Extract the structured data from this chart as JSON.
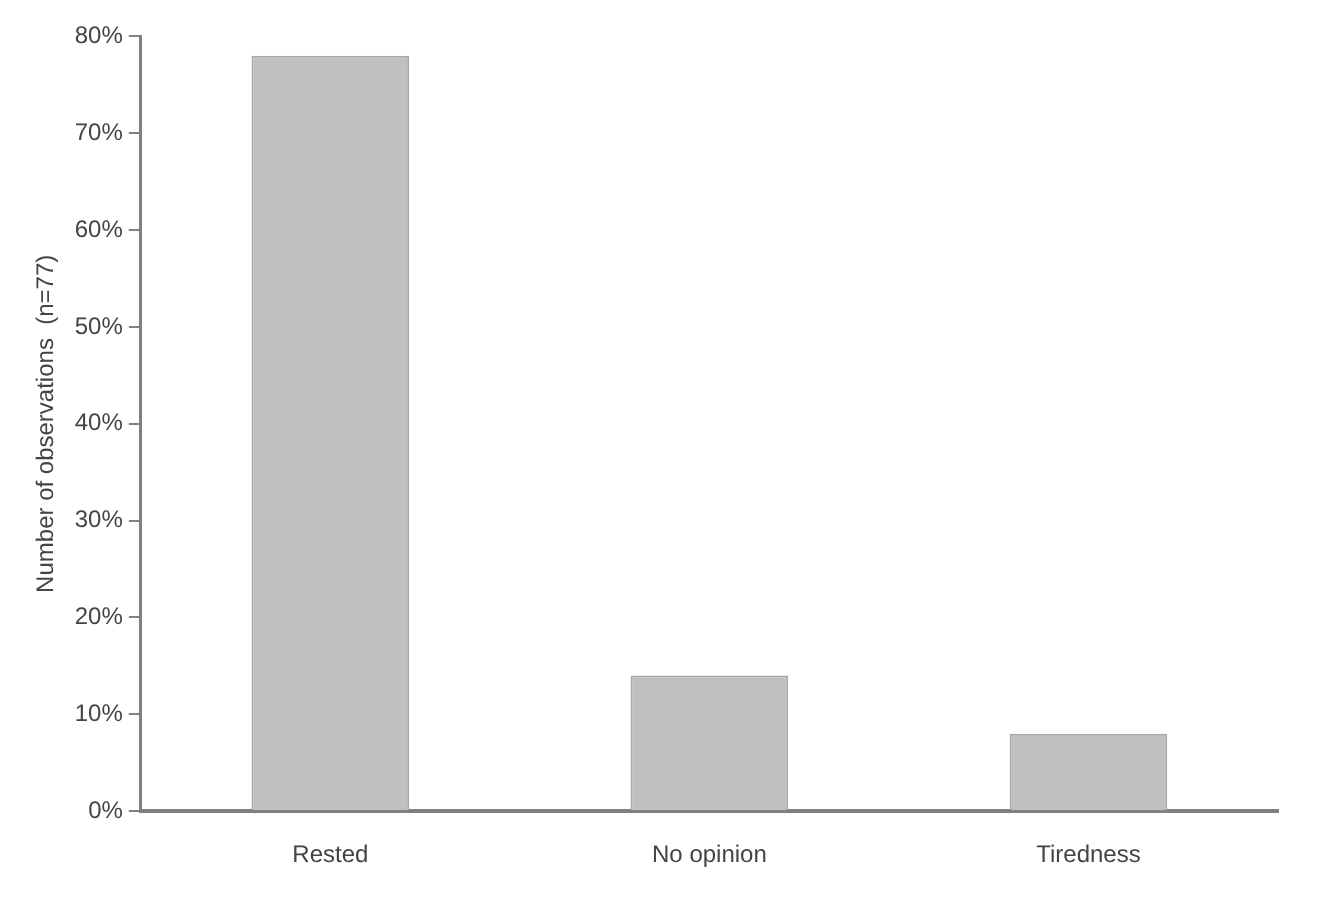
{
  "chart_data": {
    "type": "bar",
    "ylabel": "Number of observations  (n=77)",
    "categories": [
      "Rested",
      "No opinion",
      "Tiredness"
    ],
    "values": [
      78,
      14,
      8
    ],
    "color": "#c0c0c0",
    "ylim": [
      0,
      80
    ],
    "yticks": [
      {
        "value": 0,
        "label": "0%"
      },
      {
        "value": 10,
        "label": "10%"
      },
      {
        "value": 20,
        "label": "20%"
      },
      {
        "value": 30,
        "label": "30%"
      },
      {
        "value": 40,
        "label": "40%"
      },
      {
        "value": 50,
        "label": "50%"
      },
      {
        "value": 60,
        "label": "60%"
      },
      {
        "value": 70,
        "label": "70%"
      },
      {
        "value": 80,
        "label": "80%"
      }
    ],
    "grid": false,
    "legend": false
  }
}
